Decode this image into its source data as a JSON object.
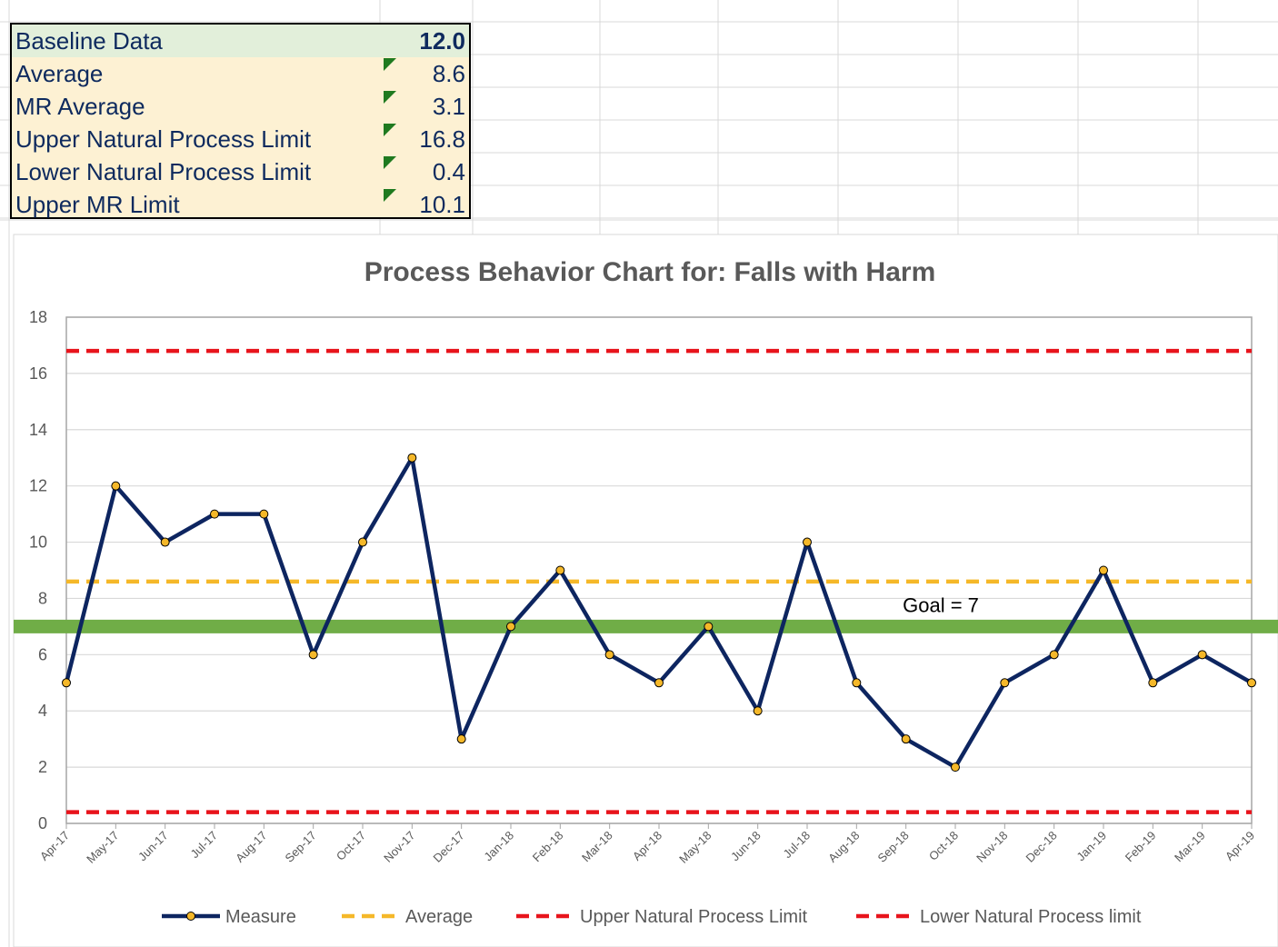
{
  "summary": {
    "rows": [
      {
        "label": "Baseline Data",
        "value": "12.0"
      },
      {
        "label": "Average",
        "value": "8.6"
      },
      {
        "label": "MR Average",
        "value": "3.1"
      },
      {
        "label": "Upper Natural Process Limit",
        "value": "16.8"
      },
      {
        "label": "Lower Natural Process Limit",
        "value": "0.4"
      },
      {
        "label": "Upper MR Limit",
        "value": "10.1"
      }
    ],
    "flag_color": "#1f7a1f",
    "baseline_fill": "#e2efda",
    "row_fill": "#fdf1d3"
  },
  "chart_data": {
    "type": "line",
    "title": "Process Behavior Chart for:  Falls with Harm",
    "xlabel": "",
    "ylabel": "",
    "ylim": [
      0,
      18
    ],
    "yticks": [
      0,
      2,
      4,
      6,
      8,
      10,
      12,
      14,
      16,
      18
    ],
    "grid": true,
    "legend_position": "bottom",
    "categories": [
      "Apr-17",
      "May-17",
      "Jun-17",
      "Jul-17",
      "Aug-17",
      "Sep-17",
      "Oct-17",
      "Nov-17",
      "Dec-17",
      "Jan-18",
      "Feb-18",
      "Mar-18",
      "Apr-18",
      "May-18",
      "Jun-18",
      "Jul-18",
      "Aug-18",
      "Sep-18",
      "Oct-18",
      "Nov-18",
      "Dec-18",
      "Jan-19",
      "Feb-19",
      "Mar-19",
      "Apr-19"
    ],
    "series": [
      {
        "name": "Measure",
        "color": "#0d2560",
        "marker_color": "#f5b829",
        "values": [
          5,
          12,
          10,
          11,
          11,
          6,
          10,
          13,
          3,
          7,
          9,
          6,
          5,
          7,
          4,
          10,
          5,
          3,
          2,
          5,
          6,
          9,
          5,
          6,
          5
        ]
      },
      {
        "name": "Average",
        "color": "#f5b829",
        "style": "dashed",
        "value": 8.6
      },
      {
        "name": "Upper Natural Process Limit",
        "color": "#e8141c",
        "style": "dashed",
        "value": 16.8
      },
      {
        "name": "Lower Natural Process limit",
        "color": "#e8141c",
        "style": "dashed",
        "value": 0.4
      }
    ],
    "goal": {
      "label": "Goal = 7",
      "value": 7,
      "color": "#70ad47"
    }
  }
}
